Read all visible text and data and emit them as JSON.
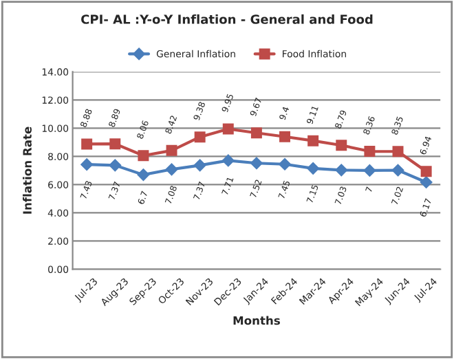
{
  "chart_data": {
    "type": "line",
    "title": "CPI- AL :Y-o-Y Inflation - General and Food",
    "xlabel": "Months",
    "ylabel": "Inflation Rate",
    "categories": [
      "Jul-23",
      "Aug-23",
      "Sep-23",
      "Oct-23",
      "Nov-23",
      "Dec-23",
      "Jan-24",
      "Feb-24",
      "Mar-24",
      "Apr-24",
      "May-24",
      "Jun-24",
      "Jul-24"
    ],
    "series": [
      {
        "name": "General Inflation",
        "color": "#4a7ebb",
        "marker": "diamond",
        "values": [
          7.43,
          7.37,
          6.7,
          7.08,
          7.37,
          7.71,
          7.52,
          7.45,
          7.15,
          7.03,
          7,
          7.02,
          6.17
        ]
      },
      {
        "name": "Food Inflation",
        "color": "#be4b48",
        "marker": "square",
        "values": [
          8.88,
          8.89,
          8.06,
          8.42,
          9.38,
          9.95,
          9.67,
          9.4,
          9.11,
          8.79,
          8.36,
          8.35,
          6.94
        ]
      }
    ],
    "ylim": [
      0,
      14
    ],
    "yticks": [
      {
        "value": 0,
        "label": "0.00"
      },
      {
        "value": 2,
        "label": "2.00"
      },
      {
        "value": 4,
        "label": "4.00"
      },
      {
        "value": 6,
        "label": "6.00"
      },
      {
        "value": 8,
        "label": "8.00"
      },
      {
        "value": 10,
        "label": "10.00"
      },
      {
        "value": 12,
        "label": "12.00"
      },
      {
        "value": 14,
        "label": "14.00"
      }
    ],
    "grid": "y",
    "legend": "top",
    "data_labels": true
  }
}
